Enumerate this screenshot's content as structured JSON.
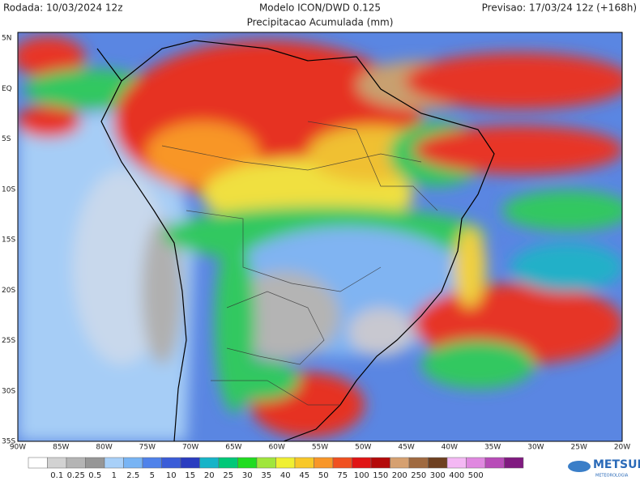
{
  "header": {
    "left": "Rodada: 10/03/2024 12z",
    "title": "Modelo ICON/DWD 0.125",
    "subtitle": "Precipitacao Acumulada (mm)",
    "right": "Previsao: 17/03/24 12z (+168h)"
  },
  "map": {
    "lat_labels": [
      "5N",
      "EQ",
      "5S",
      "10S",
      "15S",
      "20S",
      "25S",
      "30S",
      "35S"
    ],
    "lon_labels": [
      "90W",
      "85W",
      "80W",
      "75W",
      "70W",
      "65W",
      "60W",
      "55W",
      "50W",
      "45W",
      "40W",
      "35W",
      "30W",
      "25W",
      "20W"
    ]
  },
  "colorbar": {
    "colors": [
      "#ffffff",
      "#d2d2d2",
      "#b4b4b4",
      "#969696",
      "#a8d0f8",
      "#78b4f4",
      "#4f82ea",
      "#3a5cd8",
      "#2a3cc0",
      "#16b4c8",
      "#00c878",
      "#20dc20",
      "#a0e63c",
      "#f0f032",
      "#f8c828",
      "#f89628",
      "#f05020",
      "#e01414",
      "#b40a0a",
      "#d6a070",
      "#a06a40",
      "#6e4020",
      "#f4b8f4",
      "#e088e0",
      "#b84cb8",
      "#801a80"
    ],
    "labels": [
      "0.1",
      "0.25",
      "0.5",
      "1",
      "2.5",
      "5",
      "10",
      "15",
      "20",
      "25",
      "30",
      "35",
      "40",
      "45",
      "50",
      "75",
      "100",
      "150",
      "200",
      "250",
      "300",
      "400",
      "500"
    ]
  },
  "logo": {
    "name": "METSUL",
    "tagline": "METEOROLOGIA"
  }
}
